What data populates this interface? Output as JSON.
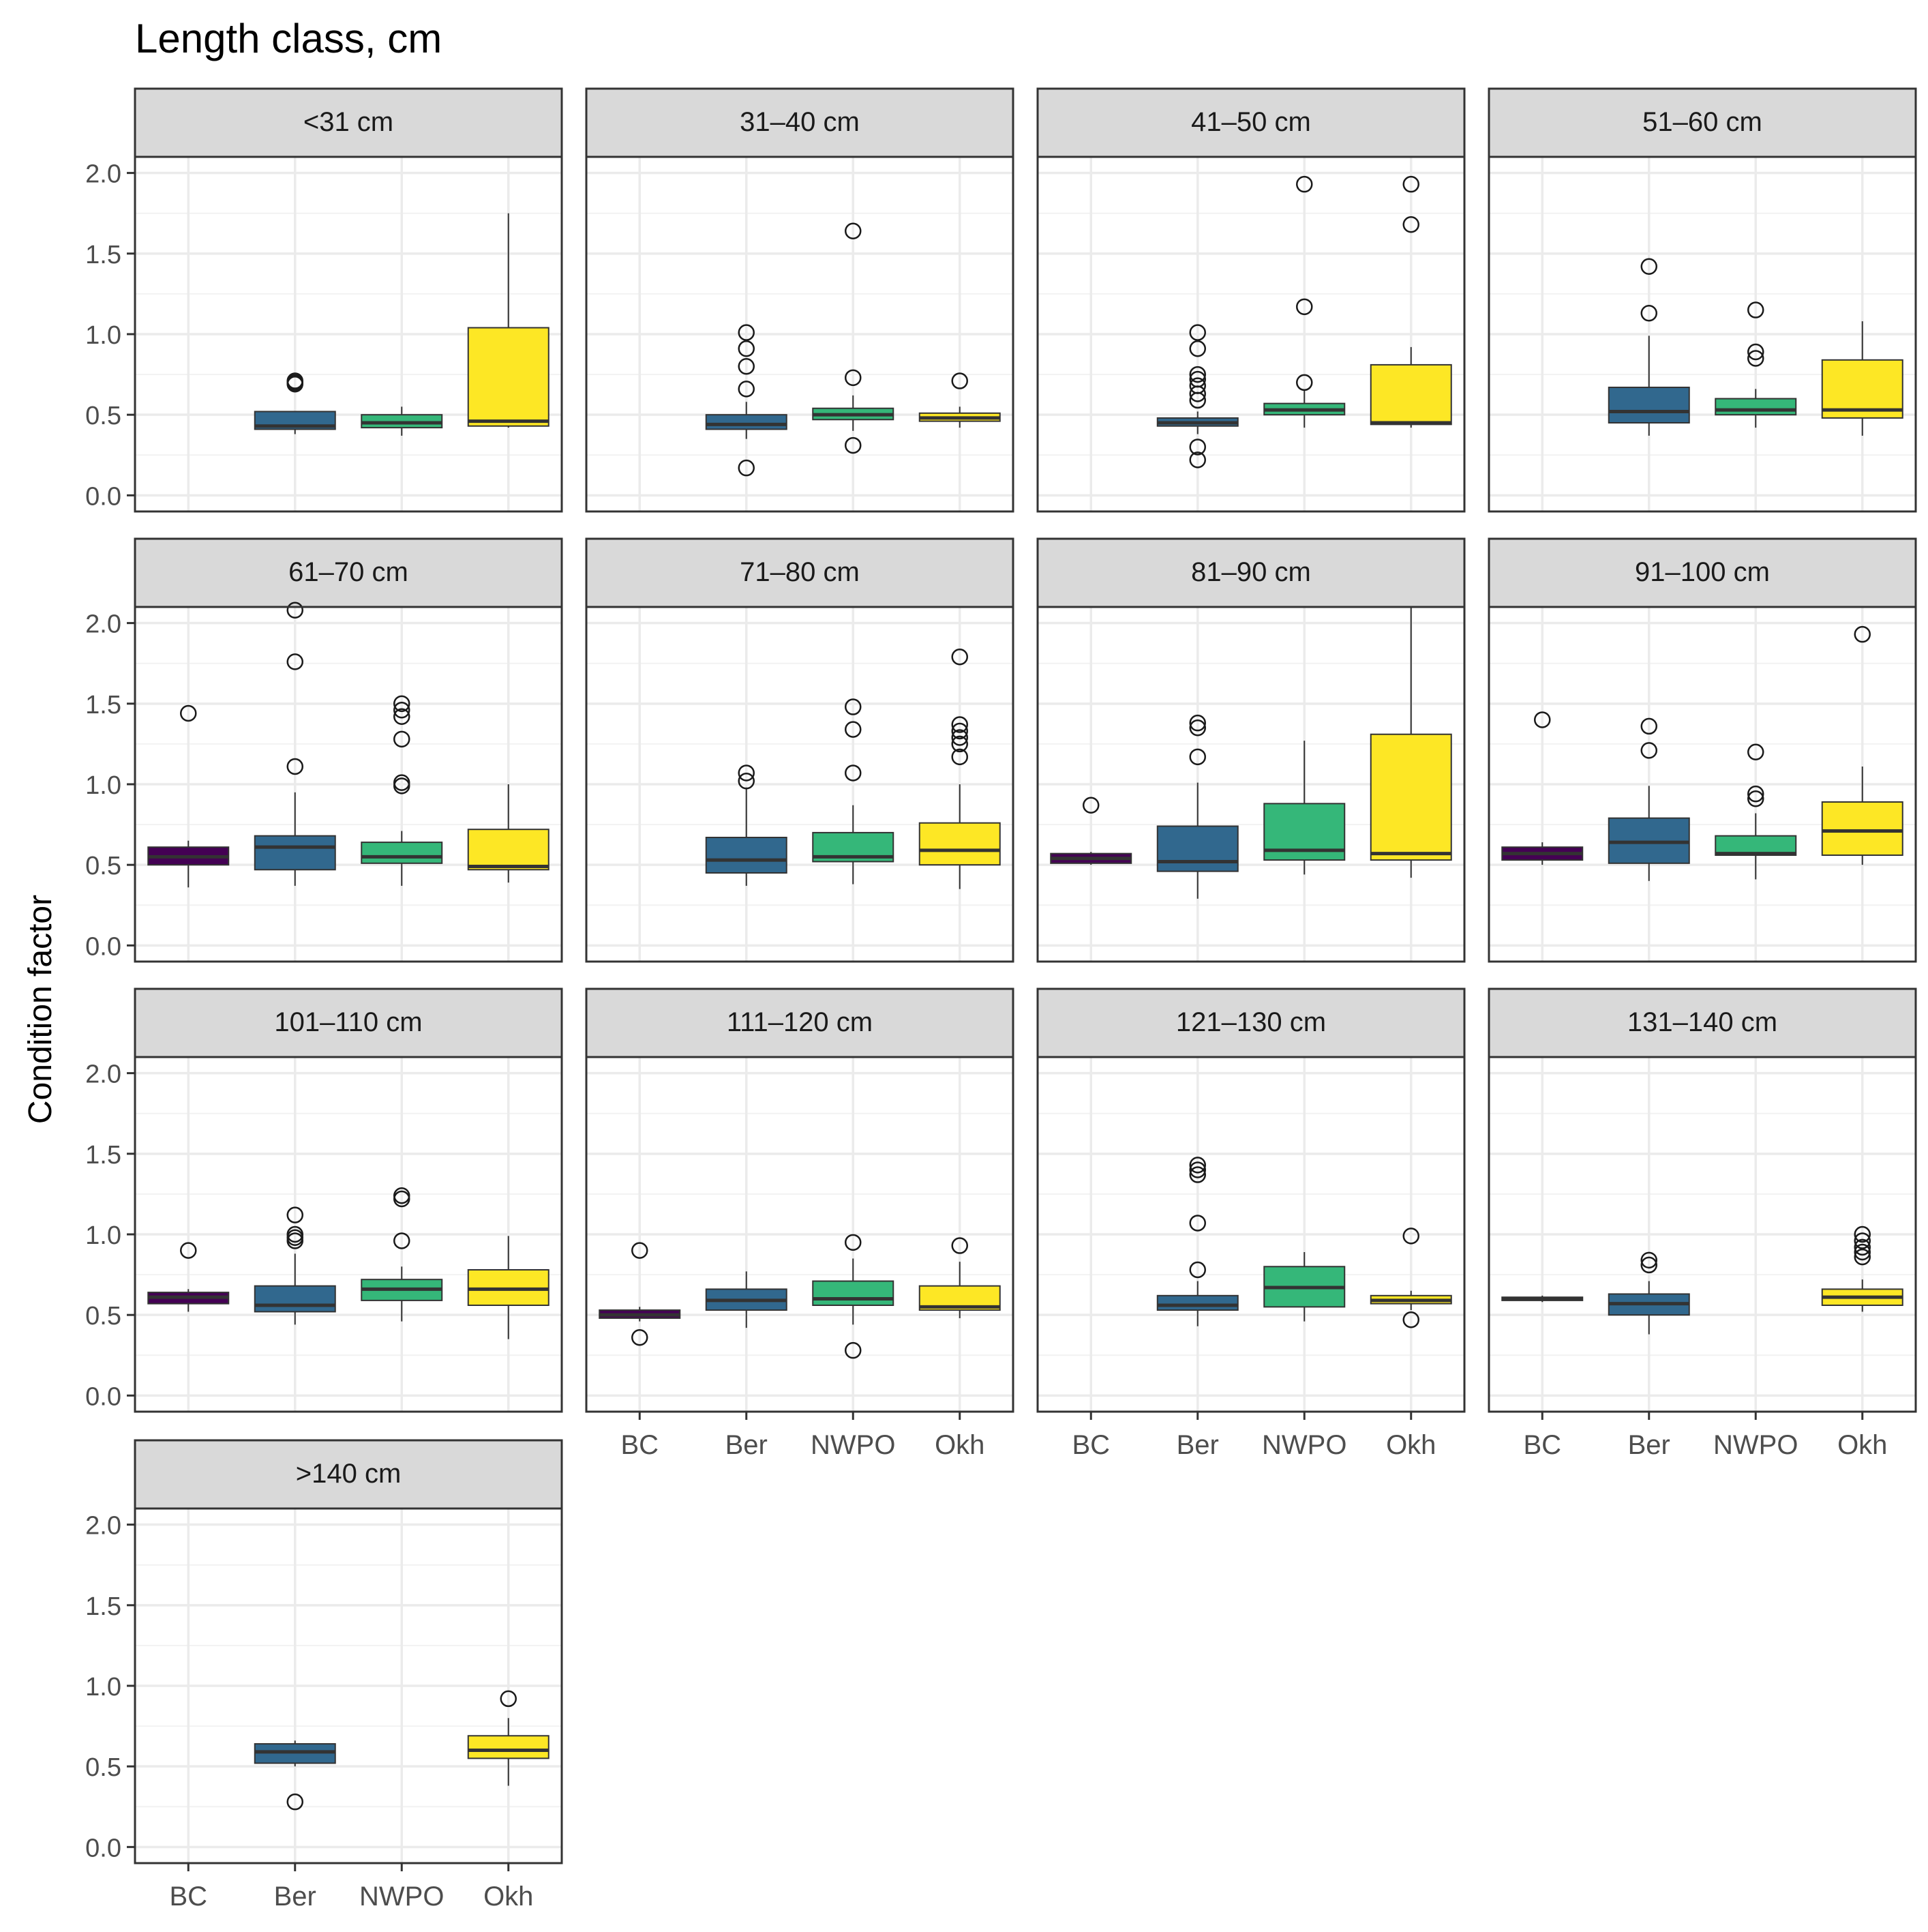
{
  "chart_data": {
    "type": "boxplot",
    "title": "Length class, cm",
    "xlabel": "",
    "ylabel": "Condition factor",
    "ylim": [
      -0.1,
      2.1
    ],
    "yticks": [
      "0.0",
      "0.5",
      "1.0",
      "1.5",
      "2.0"
    ],
    "categories": [
      "BC",
      "Ber",
      "NWPO",
      "Okh"
    ],
    "colors": {
      "BC": "#440154",
      "Ber": "#31688E",
      "NWPO": "#35B779",
      "Okh": "#FDE725"
    },
    "panel_strip_color": "#D9D9D9",
    "grid": true,
    "legend": "none",
    "facets": [
      {
        "label": "<31 cm",
        "groups": [
          {
            "group": "Ber",
            "q1": 0.41,
            "median": 0.43,
            "q3": 0.52,
            "whisker_low": 0.38,
            "whisker_high": 0.52,
            "outliers": [
              0.69,
              0.71,
              0.7
            ]
          },
          {
            "group": "NWPO",
            "q1": 0.42,
            "median": 0.45,
            "q3": 0.5,
            "whisker_low": 0.37,
            "whisker_high": 0.55,
            "outliers": []
          },
          {
            "group": "Okh",
            "q1": 0.43,
            "median": 0.46,
            "q3": 1.04,
            "whisker_low": 0.42,
            "whisker_high": 1.75,
            "outliers": []
          }
        ]
      },
      {
        "label": "31–40 cm",
        "groups": [
          {
            "group": "Ber",
            "q1": 0.41,
            "median": 0.44,
            "q3": 0.5,
            "whisker_low": 0.35,
            "whisker_high": 0.58,
            "outliers": [
              1.01,
              0.91,
              0.8,
              0.66,
              0.17
            ]
          },
          {
            "group": "NWPO",
            "q1": 0.47,
            "median": 0.5,
            "q3": 0.54,
            "whisker_low": 0.4,
            "whisker_high": 0.62,
            "outliers": [
              1.64,
              0.73,
              0.31
            ]
          },
          {
            "group": "Okh",
            "q1": 0.46,
            "median": 0.48,
            "q3": 0.51,
            "whisker_low": 0.42,
            "whisker_high": 0.55,
            "outliers": [
              0.71
            ]
          }
        ]
      },
      {
        "label": "41–50 cm",
        "groups": [
          {
            "group": "Ber",
            "q1": 0.43,
            "median": 0.45,
            "q3": 0.48,
            "whisker_low": 0.38,
            "whisker_high": 0.52,
            "outliers": [
              1.01,
              0.91,
              0.75,
              0.72,
              0.68,
              0.63,
              0.59,
              0.3,
              0.22
            ]
          },
          {
            "group": "NWPO",
            "q1": 0.5,
            "median": 0.53,
            "q3": 0.57,
            "whisker_low": 0.42,
            "whisker_high": 0.65,
            "outliers": [
              1.93,
              1.17,
              0.7
            ]
          },
          {
            "group": "Okh",
            "q1": 0.44,
            "median": 0.45,
            "q3": 0.81,
            "whisker_low": 0.42,
            "whisker_high": 0.92,
            "outliers": [
              1.93,
              1.68
            ]
          }
        ]
      },
      {
        "label": "51–60 cm",
        "groups": [
          {
            "group": "Ber",
            "q1": 0.45,
            "median": 0.52,
            "q3": 0.67,
            "whisker_low": 0.37,
            "whisker_high": 0.99,
            "outliers": [
              1.42,
              1.13
            ]
          },
          {
            "group": "NWPO",
            "q1": 0.5,
            "median": 0.53,
            "q3": 0.6,
            "whisker_low": 0.42,
            "whisker_high": 0.66,
            "outliers": [
              1.15,
              0.89,
              0.85
            ]
          },
          {
            "group": "Okh",
            "q1": 0.48,
            "median": 0.53,
            "q3": 0.84,
            "whisker_low": 0.37,
            "whisker_high": 1.08,
            "outliers": []
          }
        ]
      },
      {
        "label": "61–70 cm",
        "groups": [
          {
            "group": "BC",
            "q1": 0.5,
            "median": 0.55,
            "q3": 0.61,
            "whisker_low": 0.36,
            "whisker_high": 0.65,
            "outliers": [
              1.44
            ]
          },
          {
            "group": "Ber",
            "q1": 0.47,
            "median": 0.61,
            "q3": 0.68,
            "whisker_low": 0.37,
            "whisker_high": 0.95,
            "outliers": [
              2.08,
              1.76,
              1.11
            ]
          },
          {
            "group": "NWPO",
            "q1": 0.51,
            "median": 0.55,
            "q3": 0.64,
            "whisker_low": 0.37,
            "whisker_high": 0.71,
            "outliers": [
              1.5,
              1.46,
              1.42,
              1.28,
              1.01,
              0.99
            ]
          },
          {
            "group": "Okh",
            "q1": 0.47,
            "median": 0.49,
            "q3": 0.72,
            "whisker_low": 0.39,
            "whisker_high": 1.0,
            "outliers": []
          }
        ]
      },
      {
        "label": "71–80 cm",
        "groups": [
          {
            "group": "Ber",
            "q1": 0.45,
            "median": 0.53,
            "q3": 0.67,
            "whisker_low": 0.37,
            "whisker_high": 0.98,
            "outliers": [
              1.07,
              1.02
            ]
          },
          {
            "group": "NWPO",
            "q1": 0.52,
            "median": 0.55,
            "q3": 0.7,
            "whisker_low": 0.38,
            "whisker_high": 0.87,
            "outliers": [
              1.48,
              1.34,
              1.07
            ]
          },
          {
            "group": "Okh",
            "q1": 0.5,
            "median": 0.59,
            "q3": 0.76,
            "whisker_low": 0.35,
            "whisker_high": 1.0,
            "outliers": [
              1.79,
              1.37,
              1.33,
              1.29,
              1.25,
              1.17
            ]
          }
        ]
      },
      {
        "label": "81–90 cm",
        "groups": [
          {
            "group": "BC",
            "q1": 0.51,
            "median": 0.54,
            "q3": 0.57,
            "whisker_low": 0.5,
            "whisker_high": 0.58,
            "outliers": [
              0.87
            ]
          },
          {
            "group": "Ber",
            "q1": 0.46,
            "median": 0.52,
            "q3": 0.74,
            "whisker_low": 0.29,
            "whisker_high": 1.01,
            "outliers": [
              1.38,
              1.35,
              1.17
            ]
          },
          {
            "group": "NWPO",
            "q1": 0.53,
            "median": 0.59,
            "q3": 0.88,
            "whisker_low": 0.44,
            "whisker_high": 1.27,
            "outliers": []
          },
          {
            "group": "Okh",
            "q1": 0.53,
            "median": 0.57,
            "q3": 1.31,
            "whisker_low": 0.42,
            "whisker_high": 2.1,
            "outliers": []
          }
        ]
      },
      {
        "label": "91–100 cm",
        "groups": [
          {
            "group": "BC",
            "q1": 0.53,
            "median": 0.57,
            "q3": 0.61,
            "whisker_low": 0.5,
            "whisker_high": 0.64,
            "outliers": [
              1.4
            ]
          },
          {
            "group": "Ber",
            "q1": 0.51,
            "median": 0.64,
            "q3": 0.79,
            "whisker_low": 0.4,
            "whisker_high": 0.99,
            "outliers": [
              1.36,
              1.21
            ]
          },
          {
            "group": "NWPO",
            "q1": 0.56,
            "median": 0.57,
            "q3": 0.68,
            "whisker_low": 0.41,
            "whisker_high": 0.82,
            "outliers": [
              1.2,
              0.94,
              0.91
            ]
          },
          {
            "group": "Okh",
            "q1": 0.56,
            "median": 0.71,
            "q3": 0.89,
            "whisker_low": 0.5,
            "whisker_high": 1.11,
            "outliers": [
              1.93
            ]
          }
        ]
      },
      {
        "label": "101–110 cm",
        "groups": [
          {
            "group": "BC",
            "q1": 0.57,
            "median": 0.61,
            "q3": 0.64,
            "whisker_low": 0.52,
            "whisker_high": 0.66,
            "outliers": [
              0.9
            ]
          },
          {
            "group": "Ber",
            "q1": 0.52,
            "median": 0.56,
            "q3": 0.68,
            "whisker_low": 0.44,
            "whisker_high": 0.88,
            "outliers": [
              1.12,
              1.0,
              0.98,
              0.96
            ]
          },
          {
            "group": "NWPO",
            "q1": 0.59,
            "median": 0.66,
            "q3": 0.72,
            "whisker_low": 0.46,
            "whisker_high": 0.8,
            "outliers": [
              1.24,
              1.22,
              0.96
            ]
          },
          {
            "group": "Okh",
            "q1": 0.56,
            "median": 0.66,
            "q3": 0.78,
            "whisker_low": 0.35,
            "whisker_high": 0.99,
            "outliers": []
          }
        ]
      },
      {
        "label": "111–120 cm",
        "groups": [
          {
            "group": "BC",
            "q1": 0.48,
            "median": 0.5,
            "q3": 0.53,
            "whisker_low": 0.46,
            "whisker_high": 0.55,
            "outliers": [
              0.9,
              0.36
            ]
          },
          {
            "group": "Ber",
            "q1": 0.53,
            "median": 0.59,
            "q3": 0.66,
            "whisker_low": 0.42,
            "whisker_high": 0.77,
            "outliers": []
          },
          {
            "group": "NWPO",
            "q1": 0.56,
            "median": 0.6,
            "q3": 0.71,
            "whisker_low": 0.44,
            "whisker_high": 0.85,
            "outliers": [
              0.95,
              0.28
            ]
          },
          {
            "group": "Okh",
            "q1": 0.53,
            "median": 0.55,
            "q3": 0.68,
            "whisker_low": 0.48,
            "whisker_high": 0.83,
            "outliers": [
              0.93
            ]
          }
        ]
      },
      {
        "label": "121–130 cm",
        "groups": [
          {
            "group": "Ber",
            "q1": 0.53,
            "median": 0.56,
            "q3": 0.62,
            "whisker_low": 0.43,
            "whisker_high": 0.71,
            "outliers": [
              1.43,
              1.4,
              1.37,
              1.07,
              0.78
            ]
          },
          {
            "group": "NWPO",
            "q1": 0.55,
            "median": 0.67,
            "q3": 0.8,
            "whisker_low": 0.46,
            "whisker_high": 0.89,
            "outliers": []
          },
          {
            "group": "Okh",
            "q1": 0.57,
            "median": 0.59,
            "q3": 0.62,
            "whisker_low": 0.53,
            "whisker_high": 0.65,
            "outliers": [
              0.99,
              0.47
            ]
          }
        ]
      },
      {
        "label": "131–140 cm",
        "groups": [
          {
            "group": "BC",
            "q1": 0.59,
            "median": 0.6,
            "q3": 0.61,
            "whisker_low": 0.58,
            "whisker_high": 0.62,
            "outliers": []
          },
          {
            "group": "Ber",
            "q1": 0.5,
            "median": 0.57,
            "q3": 0.63,
            "whisker_low": 0.38,
            "whisker_high": 0.71,
            "outliers": [
              0.84,
              0.81
            ]
          },
          {
            "group": "Okh",
            "q1": 0.56,
            "median": 0.61,
            "q3": 0.66,
            "whisker_low": 0.52,
            "whisker_high": 0.72,
            "outliers": [
              1.0,
              0.96,
              0.92,
              0.89,
              0.86
            ]
          }
        ]
      },
      {
        "label": ">140 cm",
        "groups": [
          {
            "group": "Ber",
            "q1": 0.52,
            "median": 0.59,
            "q3": 0.64,
            "whisker_low": 0.5,
            "whisker_high": 0.66,
            "outliers": [
              0.28
            ]
          },
          {
            "group": "Okh",
            "q1": 0.55,
            "median": 0.6,
            "q3": 0.69,
            "whisker_low": 0.38,
            "whisker_high": 0.8,
            "outliers": [
              0.92
            ]
          }
        ]
      }
    ]
  }
}
